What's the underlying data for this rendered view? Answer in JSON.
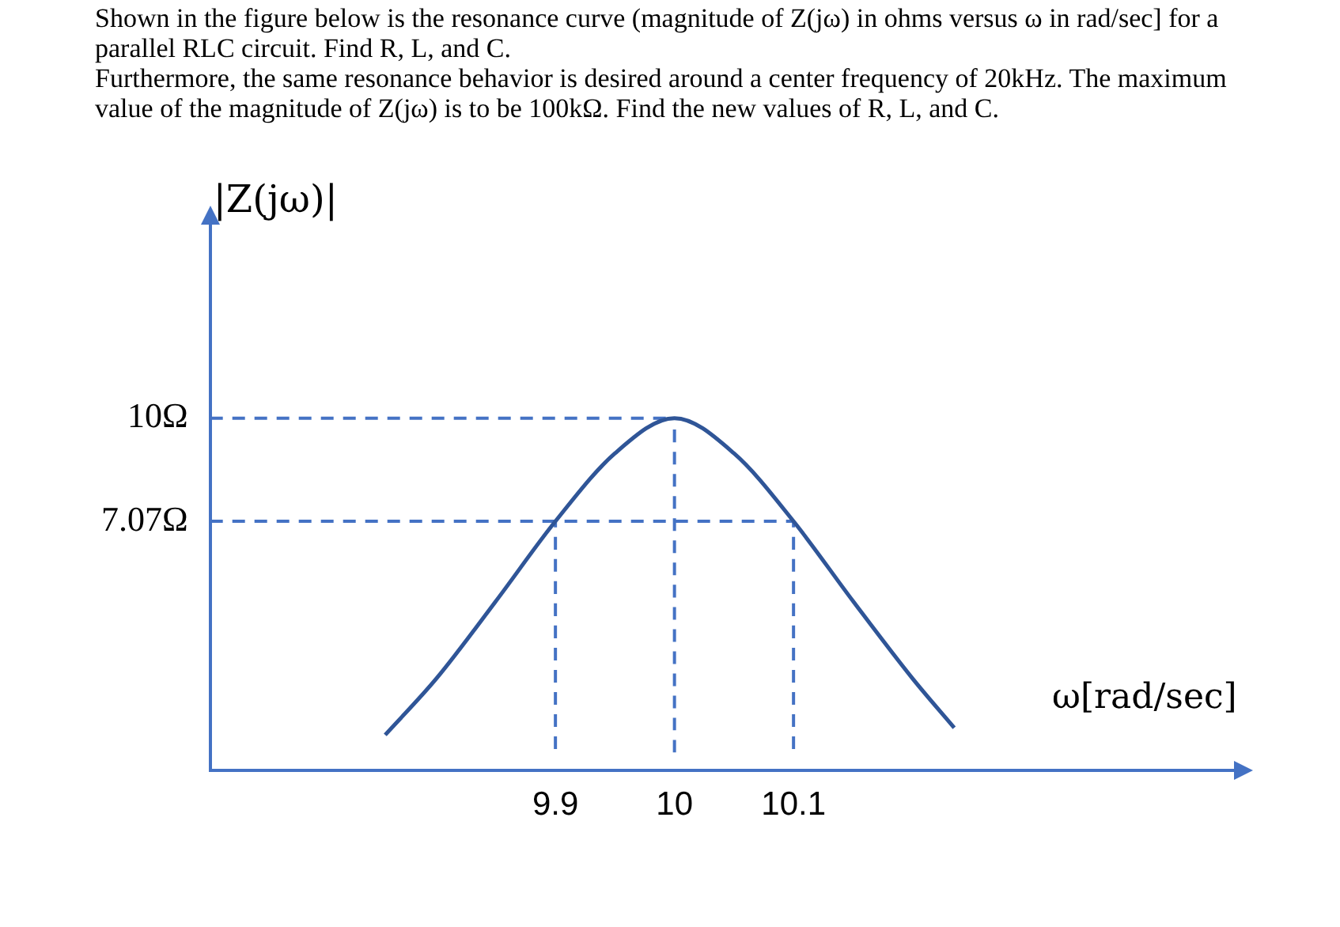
{
  "chart_data": {
    "type": "line",
    "title": "Shown in the figure below is the resonance curve (magnitude of Z(jω) in ohms versus ω in rad/sec] for a parallel RLC circuit. Find R, L, and C.",
    "subtitle": "Furthermore, the same resonance behavior is desired around a center frequency of 20kHz. The maximum value of the magnitude of Z(jω) is to be 100kΩ. Find the new values of R, L, and C.",
    "xlabel": "ω[rad/sec]",
    "ylabel": "|Z(jω)|",
    "xlim": [
      9.61,
      10.47
    ],
    "ylim": [
      0,
      15.5
    ],
    "xticks": [
      9.9,
      10,
      10.1
    ],
    "yticks": [
      {
        "value": 7.07,
        "label": "7.07Ω"
      },
      {
        "value": 10,
        "label": "10Ω"
      }
    ],
    "grid": false,
    "legend": false,
    "marker": "none",
    "series": [
      {
        "color": "#2f5597",
        "line_style": "solid",
        "x": [
          9.757,
          9.8,
          9.85,
          9.9,
          9.95,
          10,
          10.05,
          10.1,
          10.15,
          10.2,
          10.235
        ],
        "values": [
          1.0,
          2.6,
          4.8,
          7.07,
          9.0,
          10,
          9.0,
          7.07,
          4.8,
          2.6,
          1.2
        ]
      },
      {
        "color": "#4472c4",
        "line_style": "dashed",
        "x": [
          9.61,
          10
        ],
        "values": [
          10,
          10
        ]
      },
      {
        "color": "#4472c4",
        "line_style": "dashed",
        "x": [
          9.61,
          10.1
        ],
        "values": [
          7.07,
          7.07
        ]
      },
      {
        "color": "#4472c4",
        "line_style": "dashed",
        "x": [
          9.9,
          9.9
        ],
        "values": [
          0.6,
          7.07
        ]
      },
      {
        "color": "#4472c4",
        "line_style": "dashed",
        "x": [
          10,
          10
        ],
        "values": [
          0.5,
          10
        ]
      },
      {
        "color": "#4472c4",
        "line_style": "dashed",
        "x": [
          10.1,
          10.1
        ],
        "values": [
          0.6,
          7.07
        ]
      }
    ]
  }
}
